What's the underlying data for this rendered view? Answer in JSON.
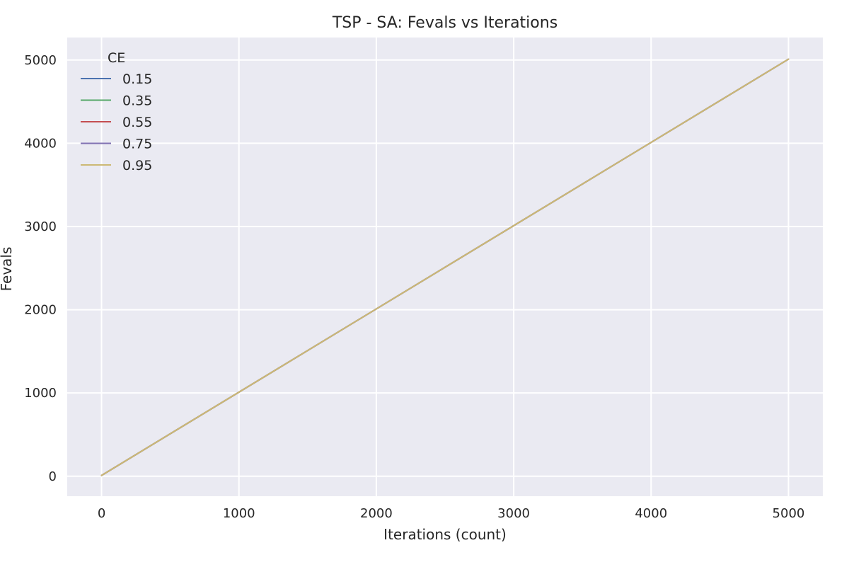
{
  "chart_data": {
    "type": "line",
    "title": "TSP - SA: Fevals vs Iterations",
    "xlabel": "Iterations (count)",
    "ylabel": "Fevals",
    "xlim": [
      -250,
      5250
    ],
    "ylim": [
      -240,
      5270
    ],
    "xticks": [
      0,
      1000,
      2000,
      3000,
      4000,
      5000
    ],
    "yticks": [
      0,
      1000,
      2000,
      3000,
      4000,
      5000
    ],
    "grid": true,
    "background": "#eaeaf2",
    "legend": {
      "title": "CE",
      "placement": "top-left"
    },
    "series": [
      {
        "name": "0.15",
        "color": "#4c72b0",
        "x": [
          0,
          5000
        ],
        "y": [
          10,
          5010
        ]
      },
      {
        "name": "0.35",
        "color": "#55a868",
        "x": [
          0,
          5000
        ],
        "y": [
          10,
          5010
        ]
      },
      {
        "name": "0.55",
        "color": "#c44e52",
        "x": [
          0,
          5000
        ],
        "y": [
          10,
          5010
        ]
      },
      {
        "name": "0.75",
        "color": "#8172b2",
        "x": [
          0,
          5000
        ],
        "y": [
          10,
          5010
        ]
      },
      {
        "name": "0.95",
        "color": "#ccb974",
        "x": [
          0,
          5000
        ],
        "y": [
          10,
          5010
        ]
      }
    ]
  }
}
